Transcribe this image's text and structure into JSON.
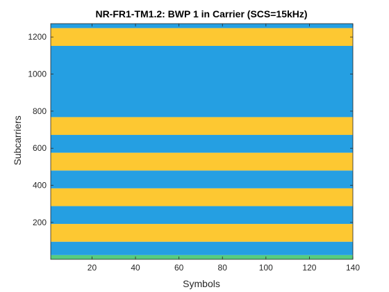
{
  "chart_data": {
    "type": "heatmap",
    "title": "NR-FR1-TM1.2: BWP 1 in Carrier (SCS=15kHz)",
    "xlabel": "Symbols",
    "ylabel": "Subcarriers",
    "xlim": [
      1,
      140
    ],
    "ylim": [
      1,
      1272
    ],
    "xticks": [
      20,
      40,
      60,
      80,
      100,
      120,
      140
    ],
    "yticks": [
      200,
      400,
      600,
      800,
      1000,
      1200
    ],
    "colors": {
      "blue": "#259fe2",
      "yellow": "#fdc832",
      "green": "#57cc7e"
    },
    "bands": [
      {
        "y0": 0,
        "y1": 24,
        "color": "green"
      },
      {
        "y0": 24,
        "y1": 96,
        "color": "blue"
      },
      {
        "y0": 96,
        "y1": 192,
        "color": "yellow"
      },
      {
        "y0": 192,
        "y1": 288,
        "color": "blue"
      },
      {
        "y0": 288,
        "y1": 384,
        "color": "yellow"
      },
      {
        "y0": 384,
        "y1": 480,
        "color": "blue"
      },
      {
        "y0": 480,
        "y1": 576,
        "color": "yellow"
      },
      {
        "y0": 576,
        "y1": 672,
        "color": "blue"
      },
      {
        "y0": 672,
        "y1": 768,
        "color": "yellow"
      },
      {
        "y0": 768,
        "y1": 1152,
        "color": "blue"
      },
      {
        "y0": 1152,
        "y1": 1248,
        "color": "yellow"
      },
      {
        "y0": 1248,
        "y1": 1272,
        "color": "blue"
      }
    ]
  }
}
